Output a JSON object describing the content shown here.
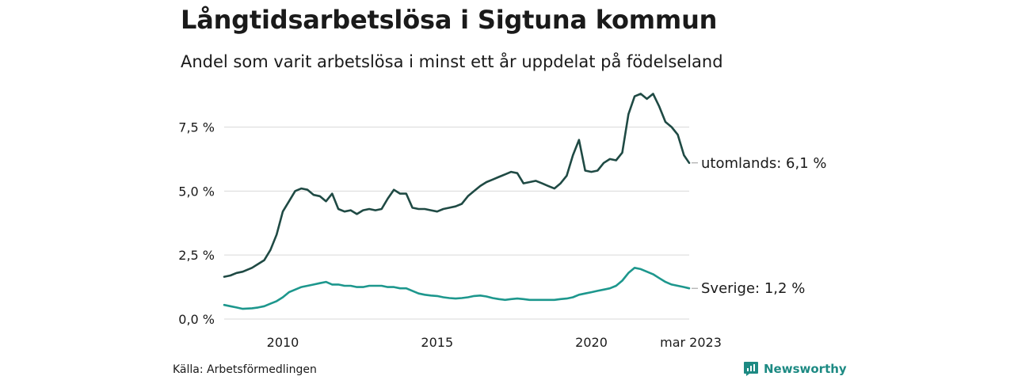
{
  "header": {
    "title": "Långtidsarbetslösa i Sigtuna kommun",
    "subtitle": "Andel som varit arbetslösa i minst ett år uppdelat på födelseland"
  },
  "footer": {
    "source": "Källa: Arbetsförmedlingen",
    "brand": "Newsworthy"
  },
  "colors": {
    "utomlands": "#1f4a44",
    "sverige": "#1d978d",
    "grid": "#d9d9d9",
    "brand": "#1d8a83"
  },
  "chart_data": {
    "type": "line",
    "title": "Långtidsarbetslösa i Sigtuna kommun",
    "subtitle": "Andel som varit arbetslösa i minst ett år uppdelat på födelseland",
    "x_unit": "year",
    "xlim": [
      2008.1,
      2023.17
    ],
    "ylim": [
      0,
      9.0
    ],
    "yticks": [
      0,
      2.5,
      5.0,
      7.5
    ],
    "ytick_labels": [
      "0,0 %",
      "2,5 %",
      "5,0 %",
      "7,5 %"
    ],
    "xticks": [
      2010,
      2015,
      2020,
      2023.17
    ],
    "xtick_labels": [
      "2010",
      "2015",
      "2020",
      "mar 2023"
    ],
    "grid": "horizontal",
    "series": [
      {
        "name": "utomlands",
        "end_label": "utomlands: 6,1 %",
        "color": "#1f4a44",
        "x": [
          2008.1,
          2008.3,
          2008.5,
          2008.7,
          2009.0,
          2009.2,
          2009.4,
          2009.6,
          2009.8,
          2010.0,
          2010.2,
          2010.4,
          2010.6,
          2010.8,
          2011.0,
          2011.2,
          2011.4,
          2011.6,
          2011.8,
          2012.0,
          2012.2,
          2012.4,
          2012.6,
          2012.8,
          2013.0,
          2013.2,
          2013.4,
          2013.6,
          2013.8,
          2014.0,
          2014.2,
          2014.4,
          2014.6,
          2014.8,
          2015.0,
          2015.2,
          2015.4,
          2015.6,
          2015.8,
          2016.0,
          2016.2,
          2016.4,
          2016.6,
          2016.8,
          2017.0,
          2017.2,
          2017.4,
          2017.6,
          2017.8,
          2018.0,
          2018.2,
          2018.4,
          2018.6,
          2018.8,
          2019.0,
          2019.2,
          2019.4,
          2019.6,
          2019.8,
          2020.0,
          2020.2,
          2020.4,
          2020.6,
          2020.8,
          2021.0,
          2021.2,
          2021.4,
          2021.6,
          2021.8,
          2022.0,
          2022.2,
          2022.4,
          2022.6,
          2022.8,
          2023.0,
          2023.17
        ],
        "values": [
          1.65,
          1.7,
          1.8,
          1.85,
          2.0,
          2.15,
          2.3,
          2.7,
          3.3,
          4.2,
          4.6,
          5.0,
          5.1,
          5.05,
          4.85,
          4.8,
          4.6,
          4.9,
          4.3,
          4.2,
          4.25,
          4.1,
          4.25,
          4.3,
          4.25,
          4.3,
          4.7,
          5.05,
          4.9,
          4.9,
          4.35,
          4.3,
          4.3,
          4.25,
          4.2,
          4.3,
          4.35,
          4.4,
          4.5,
          4.8,
          5.0,
          5.2,
          5.35,
          5.45,
          5.55,
          5.65,
          5.75,
          5.7,
          5.3,
          5.35,
          5.4,
          5.3,
          5.2,
          5.1,
          5.3,
          5.6,
          6.4,
          7.0,
          5.8,
          5.75,
          5.8,
          6.1,
          6.25,
          6.2,
          6.5,
          8.0,
          8.7,
          8.8,
          8.6,
          8.8,
          8.3,
          7.7,
          7.5,
          7.2,
          6.4,
          6.1
        ]
      },
      {
        "name": "Sverige",
        "end_label": "Sverige: 1,2 %",
        "color": "#1d978d",
        "x": [
          2008.1,
          2008.3,
          2008.5,
          2008.7,
          2009.0,
          2009.2,
          2009.4,
          2009.6,
          2009.8,
          2010.0,
          2010.2,
          2010.4,
          2010.6,
          2010.8,
          2011.0,
          2011.2,
          2011.4,
          2011.6,
          2011.8,
          2012.0,
          2012.2,
          2012.4,
          2012.6,
          2012.8,
          2013.0,
          2013.2,
          2013.4,
          2013.6,
          2013.8,
          2014.0,
          2014.2,
          2014.4,
          2014.6,
          2014.8,
          2015.0,
          2015.2,
          2015.4,
          2015.6,
          2015.8,
          2016.0,
          2016.2,
          2016.4,
          2016.6,
          2016.8,
          2017.0,
          2017.2,
          2017.4,
          2017.6,
          2017.8,
          2018.0,
          2018.2,
          2018.4,
          2018.6,
          2018.8,
          2019.0,
          2019.2,
          2019.4,
          2019.6,
          2019.8,
          2020.0,
          2020.2,
          2020.4,
          2020.6,
          2020.8,
          2021.0,
          2021.2,
          2021.4,
          2021.6,
          2021.8,
          2022.0,
          2022.2,
          2022.4,
          2022.6,
          2022.8,
          2023.0,
          2023.17
        ],
        "values": [
          0.55,
          0.5,
          0.45,
          0.4,
          0.42,
          0.45,
          0.5,
          0.6,
          0.7,
          0.85,
          1.05,
          1.15,
          1.25,
          1.3,
          1.35,
          1.4,
          1.45,
          1.35,
          1.35,
          1.3,
          1.3,
          1.25,
          1.25,
          1.3,
          1.3,
          1.3,
          1.25,
          1.25,
          1.2,
          1.2,
          1.1,
          1.0,
          0.95,
          0.92,
          0.9,
          0.85,
          0.82,
          0.8,
          0.82,
          0.85,
          0.9,
          0.92,
          0.88,
          0.82,
          0.78,
          0.75,
          0.78,
          0.8,
          0.78,
          0.75,
          0.75,
          0.75,
          0.75,
          0.75,
          0.78,
          0.8,
          0.85,
          0.95,
          1.0,
          1.05,
          1.1,
          1.15,
          1.2,
          1.3,
          1.5,
          1.8,
          2.0,
          1.95,
          1.85,
          1.75,
          1.6,
          1.45,
          1.35,
          1.3,
          1.25,
          1.2
        ]
      }
    ]
  }
}
